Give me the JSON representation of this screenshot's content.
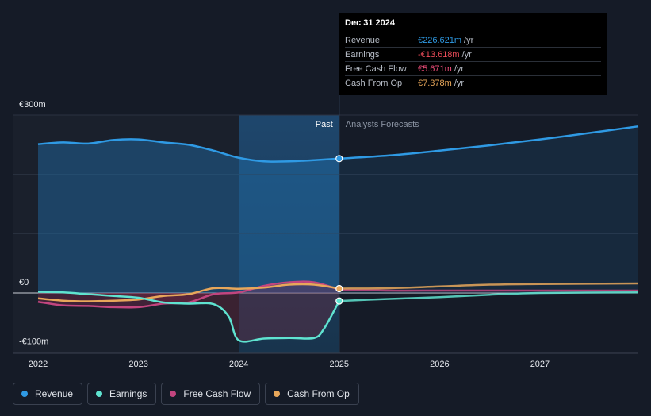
{
  "tooltip": {
    "date": "Dec 31 2024",
    "rows": [
      {
        "label": "Revenue",
        "value": "€226.621m",
        "unit": "/yr",
        "color": "#2f9ae4"
      },
      {
        "label": "Earnings",
        "value": "-€13.618m",
        "unit": "/yr",
        "color": "#ef4d5a"
      },
      {
        "label": "Free Cash Flow",
        "value": "€5.671m",
        "unit": "/yr",
        "color": "#ef4d7a"
      },
      {
        "label": "Cash From Op",
        "value": "€7.378m",
        "unit": "/yr",
        "color": "#e8a75a"
      }
    ]
  },
  "legend": [
    {
      "label": "Revenue",
      "color": "#2f9ae4"
    },
    {
      "label": "Earnings",
      "color": "#5fe3d0"
    },
    {
      "label": "Free Cash Flow",
      "color": "#c2457f"
    },
    {
      "label": "Cash From Op",
      "color": "#e8a75a"
    }
  ],
  "chart_data": {
    "type": "line",
    "ylabels": [
      "€300m",
      "€0",
      "-€100m"
    ],
    "ylim": [
      -100,
      300
    ],
    "xlim": [
      2022.0,
      2027.98
    ],
    "xticks": [
      "2022",
      "2023",
      "2024",
      "2025",
      "2026",
      "2027"
    ],
    "past_label": "Past",
    "forecast_label": "Analysts Forecasts",
    "divider_x": 2025.0,
    "highlight_start": 2024.0,
    "series": [
      {
        "name": "Revenue",
        "color": "#2f9ae4",
        "area": true,
        "points": [
          [
            2022.0,
            251
          ],
          [
            2022.25,
            254
          ],
          [
            2022.5,
            252
          ],
          [
            2022.75,
            258
          ],
          [
            2023.0,
            259
          ],
          [
            2023.25,
            254
          ],
          [
            2023.5,
            250
          ],
          [
            2023.75,
            240
          ],
          [
            2024.0,
            228
          ],
          [
            2024.25,
            222
          ],
          [
            2024.5,
            222
          ],
          [
            2024.75,
            224
          ],
          [
            2025.0,
            226.6
          ],
          [
            2025.5,
            232
          ],
          [
            2026.0,
            240
          ],
          [
            2026.5,
            249
          ],
          [
            2027.0,
            259
          ],
          [
            2027.5,
            270
          ],
          [
            2027.98,
            281
          ]
        ]
      },
      {
        "name": "Earnings",
        "color": "#5fe3d0",
        "area": true,
        "points": [
          [
            2022.0,
            2
          ],
          [
            2022.25,
            1
          ],
          [
            2022.5,
            -2
          ],
          [
            2022.75,
            -5
          ],
          [
            2023.0,
            -8
          ],
          [
            2023.25,
            -16
          ],
          [
            2023.5,
            -18
          ],
          [
            2023.75,
            -19
          ],
          [
            2023.9,
            -40
          ],
          [
            2024.0,
            -80
          ],
          [
            2024.25,
            -77
          ],
          [
            2024.5,
            -76
          ],
          [
            2024.75,
            -76
          ],
          [
            2024.85,
            -60
          ],
          [
            2025.0,
            -13.6
          ],
          [
            2025.5,
            -10
          ],
          [
            2026.0,
            -7
          ],
          [
            2026.5,
            -3
          ],
          [
            2027.0,
            0
          ],
          [
            2027.98,
            1
          ]
        ]
      },
      {
        "name": "Free Cash Flow",
        "color": "#c2457f",
        "area": true,
        "points": [
          [
            2022.0,
            -15
          ],
          [
            2022.25,
            -21
          ],
          [
            2022.5,
            -22
          ],
          [
            2022.75,
            -24
          ],
          [
            2023.0,
            -24
          ],
          [
            2023.25,
            -18
          ],
          [
            2023.5,
            -16
          ],
          [
            2023.75,
            -2
          ],
          [
            2024.0,
            1
          ],
          [
            2024.25,
            12
          ],
          [
            2024.5,
            18
          ],
          [
            2024.75,
            18
          ],
          [
            2025.0,
            5.7
          ],
          [
            2025.5,
            4
          ],
          [
            2026.0,
            4
          ],
          [
            2026.5,
            4
          ],
          [
            2027.0,
            4
          ],
          [
            2027.98,
            4
          ]
        ]
      },
      {
        "name": "Cash From Op",
        "color": "#e8a75a",
        "area": false,
        "points": [
          [
            2022.0,
            -9
          ],
          [
            2022.25,
            -13
          ],
          [
            2022.5,
            -14
          ],
          [
            2022.75,
            -13
          ],
          [
            2023.0,
            -11
          ],
          [
            2023.25,
            -5
          ],
          [
            2023.5,
            -2
          ],
          [
            2023.75,
            8
          ],
          [
            2024.0,
            7
          ],
          [
            2024.25,
            9
          ],
          [
            2024.5,
            14
          ],
          [
            2024.75,
            14
          ],
          [
            2025.0,
            7.4
          ],
          [
            2025.5,
            8
          ],
          [
            2026.0,
            11
          ],
          [
            2026.5,
            14
          ],
          [
            2027.0,
            15
          ],
          [
            2027.98,
            16
          ]
        ]
      }
    ]
  }
}
